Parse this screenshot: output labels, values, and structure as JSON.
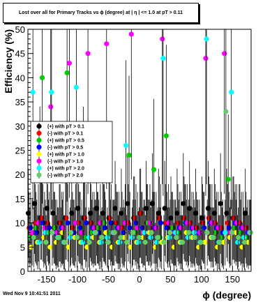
{
  "chart_data": {
    "type": "scatter",
    "title": "Lost over all for Primary Tracks vs ϕ (degree) at | η | <= 1.0 at pT > 0.11",
    "xlabel": "ϕ (degree)",
    "ylabel": "Efficiency (%)",
    "xlim": [
      -180,
      180
    ],
    "ylim": [
      0,
      50
    ],
    "x_ticks": [
      -150,
      -100,
      -50,
      0,
      50,
      100,
      150
    ],
    "y_ticks": [
      0,
      5,
      10,
      15,
      20,
      25,
      30,
      35,
      40,
      45,
      50
    ],
    "grid": false,
    "legend_position": "left",
    "legend": [
      {
        "label": "(+) with pT > 0.1",
        "color": "#000000"
      },
      {
        "label": "(-) with pT > 0.1",
        "color": "#ff0000"
      },
      {
        "label": "(+) with pT > 0.5",
        "color": "#00cc00"
      },
      {
        "label": "(-) with pT > 0.5",
        "color": "#0000ff"
      },
      {
        "label": "(+) with pT > 1.0",
        "color": "#ffff00"
      },
      {
        "label": "(-) with pT > 1.0",
        "color": "#ff00ff"
      },
      {
        "label": "(+) with pT > 2.0",
        "color": "#00ffff"
      },
      {
        "label": "(-) with pT > 2.0",
        "color": "#66cc66"
      }
    ],
    "series": [
      {
        "color": "#000000",
        "x": [
          -175,
          -165,
          -155,
          -145,
          -135,
          -125,
          -115,
          -105,
          -95,
          -85,
          -75,
          -65,
          -55,
          -45,
          -35,
          -25,
          -15,
          -5,
          5,
          15,
          25,
          35,
          45,
          55,
          65,
          75,
          85,
          95,
          105,
          115,
          125,
          135,
          145,
          155,
          165,
          175
        ],
        "y": [
          12,
          14,
          11,
          13,
          12,
          10,
          11,
          12,
          13,
          11,
          12,
          13,
          12,
          11,
          13,
          12,
          14,
          11,
          12,
          13,
          14,
          12,
          13,
          11,
          12,
          14,
          13,
          12,
          11,
          13,
          12,
          14,
          12,
          11,
          10,
          12
        ]
      },
      {
        "color": "#ff0000",
        "x": [
          -175,
          -165,
          -155,
          -145,
          -135,
          -125,
          -115,
          -105,
          -95,
          -85,
          -75,
          -65,
          -55,
          -45,
          -35,
          -25,
          -15,
          -5,
          5,
          15,
          25,
          35,
          45,
          55,
          65,
          75,
          85,
          95,
          105,
          115,
          125,
          135,
          145,
          155,
          165,
          175
        ],
        "y": [
          9,
          10,
          11,
          10,
          9,
          10,
          11,
          9,
          10,
          11,
          10,
          9,
          10,
          11,
          10,
          9,
          10,
          11,
          12,
          10,
          9,
          11,
          10,
          9,
          10,
          11,
          10,
          9,
          10,
          11,
          10,
          9,
          10,
          11,
          10,
          9
        ]
      },
      {
        "color": "#00cc00",
        "x": [
          -175,
          -165,
          -155,
          -145,
          -135,
          -125,
          -115,
          -105,
          -95,
          -85,
          -75,
          -65,
          -55,
          -45,
          -35,
          -25,
          -15,
          -5,
          5,
          15,
          25,
          35,
          45,
          55,
          65,
          75,
          85,
          95,
          105,
          115,
          125,
          135,
          145,
          155,
          165,
          175
        ],
        "y": [
          7,
          9,
          40,
          8,
          9,
          7,
          41,
          8,
          9,
          7,
          8,
          9,
          10,
          8,
          9,
          7,
          24,
          8,
          9,
          10,
          21,
          7,
          28,
          9,
          8,
          10,
          7,
          8,
          9,
          10,
          8,
          7,
          19,
          9,
          8,
          7
        ]
      },
      {
        "color": "#0000ff",
        "x": [
          -175,
          -165,
          -155,
          -145,
          -135,
          -125,
          -115,
          -105,
          -95,
          -85,
          -75,
          -65,
          -55,
          -45,
          -35,
          -25,
          -15,
          -5,
          5,
          15,
          25,
          35,
          45,
          55,
          65,
          75,
          85,
          95,
          105,
          115,
          125,
          135,
          145,
          155,
          165,
          175
        ],
        "y": [
          9,
          8,
          10,
          9,
          8,
          9,
          10,
          8,
          9,
          10,
          9,
          8,
          9,
          10,
          9,
          8,
          9,
          10,
          9,
          8,
          9,
          10,
          9,
          8,
          9,
          10,
          9,
          8,
          9,
          10,
          9,
          8,
          9,
          10,
          9,
          8
        ]
      },
      {
        "color": "#ffff00",
        "x": [
          -175,
          -165,
          -155,
          -145,
          -135,
          -125,
          -115,
          -105,
          -95,
          -85,
          -75,
          -65,
          -55,
          -45,
          -35,
          -25,
          -15,
          -5,
          5,
          15,
          25,
          35,
          45,
          55,
          65,
          75,
          85,
          95,
          105,
          115,
          125,
          135,
          145,
          155,
          165,
          175
        ],
        "y": [
          5,
          6,
          7,
          5,
          6,
          8,
          5,
          7,
          6,
          5,
          7,
          6,
          8,
          5,
          6,
          7,
          5,
          6,
          7,
          8,
          5,
          6,
          7,
          5,
          6,
          8,
          7,
          5,
          6,
          7,
          5,
          6,
          7,
          8,
          5,
          6
        ]
      },
      {
        "color": "#ff00ff",
        "x": [
          -175,
          -165,
          -155,
          -145,
          -135,
          -125,
          -115,
          -105,
          -95,
          -85,
          -75,
          -65,
          -55,
          -45,
          -35,
          -25,
          -15,
          -5,
          5,
          15,
          25,
          35,
          45,
          55,
          65,
          75,
          85,
          95,
          105,
          115,
          125,
          135,
          145,
          155,
          165,
          175
        ],
        "y": [
          8,
          10,
          9,
          34,
          8,
          9,
          43,
          10,
          8,
          45,
          9,
          10,
          47,
          8,
          9,
          10,
          49,
          9,
          8,
          10,
          9,
          48,
          10,
          8,
          9,
          10,
          9,
          8,
          44,
          10,
          9,
          45,
          8,
          10,
          9,
          8
        ]
      },
      {
        "color": "#00ffff",
        "x": [
          -175,
          -165,
          -155,
          -145,
          -135,
          -125,
          -115,
          -105,
          -95,
          -85,
          -75,
          -65,
          -55,
          -45,
          -35,
          -25,
          -15,
          -5,
          5,
          15,
          25,
          35,
          45,
          55,
          65,
          75,
          85,
          95,
          105,
          115,
          125,
          135,
          145,
          155,
          165,
          175
        ],
        "y": [
          37,
          6,
          8,
          37,
          7,
          6,
          7,
          38,
          6,
          7,
          8,
          6,
          7,
          8,
          6,
          26,
          7,
          6,
          8,
          7,
          6,
          44,
          7,
          8,
          6,
          7,
          8,
          6,
          48,
          7,
          6,
          8,
          37,
          6,
          7,
          8
        ]
      },
      {
        "color": "#66cc66",
        "x": [
          -175,
          -165,
          -155,
          -145,
          -135,
          -125,
          -115,
          -105,
          -95,
          -85,
          -75,
          -65,
          -55,
          -45,
          -35,
          -25,
          -15,
          -5,
          5,
          15,
          25,
          35,
          45,
          55,
          65,
          75,
          85,
          95,
          105,
          115,
          125,
          135,
          145,
          155,
          165,
          175
        ],
        "y": [
          7,
          20,
          6,
          8,
          7,
          6,
          8,
          7,
          20,
          6,
          8,
          7,
          6,
          8,
          7,
          6,
          8,
          7,
          6,
          8,
          7,
          6,
          8,
          7,
          6,
          8,
          7,
          6,
          8,
          7,
          6,
          33,
          8,
          7,
          6,
          8
        ]
      }
    ]
  },
  "footer": "Wed Nov  9 10:41:51 2011"
}
